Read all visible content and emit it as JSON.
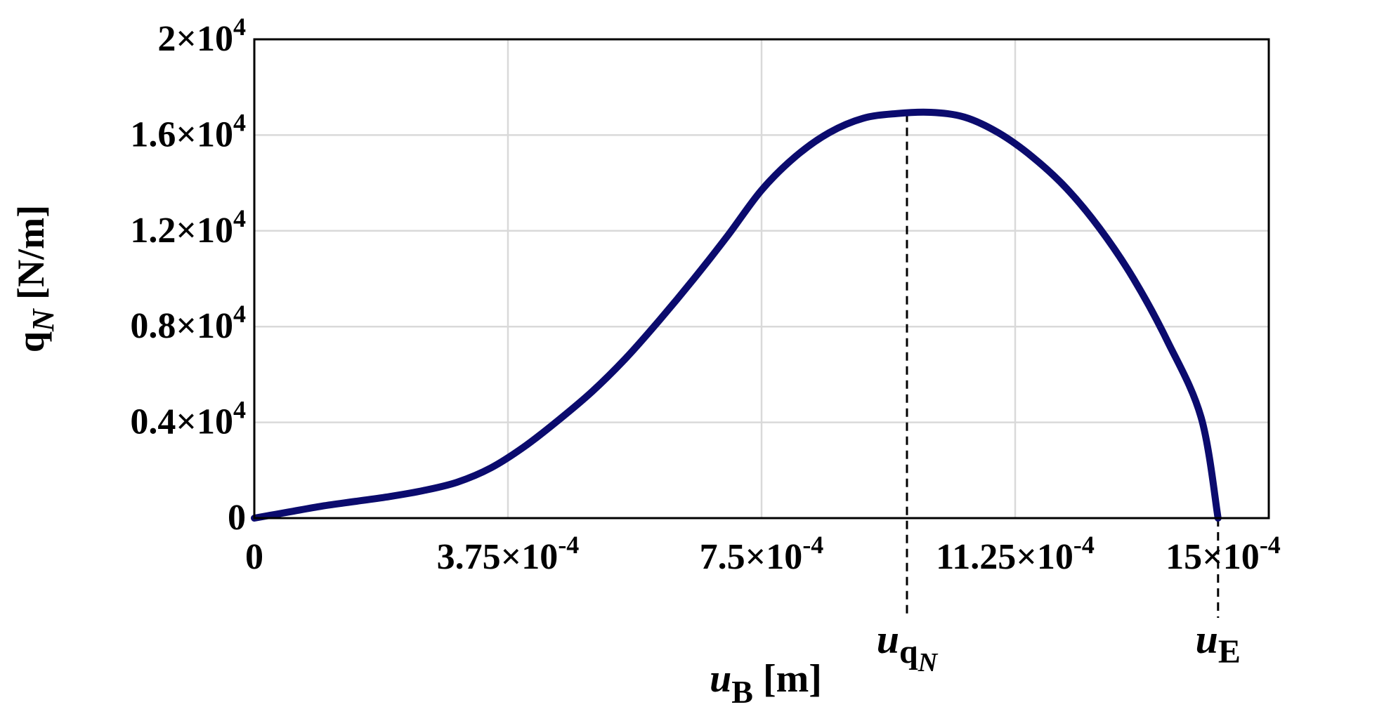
{
  "chart_data": {
    "type": "line",
    "title": "",
    "xlabel": {
      "base": "u",
      "sub": "B",
      "unit": " [m]"
    },
    "ylabel": {
      "base": "q",
      "sub": "N",
      "unit": " [N/m]"
    },
    "xlim": [
      0,
      0.0015
    ],
    "ylim": [
      0,
      20000
    ],
    "grid": true,
    "x_ticks": [
      {
        "value": 0,
        "mant": "0",
        "exp": ""
      },
      {
        "value": 0.000375,
        "mant": "3.75×10",
        "exp": "-4"
      },
      {
        "value": 0.00075,
        "mant": "7.5×10",
        "exp": "-4"
      },
      {
        "value": 0.001125,
        "mant": "11.25×10",
        "exp": "-4"
      },
      {
        "value": 0.0015,
        "mant": "15×10",
        "exp": "-4"
      }
    ],
    "y_ticks": [
      {
        "value": 0,
        "mant": "0",
        "exp": ""
      },
      {
        "value": 4000,
        "mant": "0.4×10",
        "exp": "4"
      },
      {
        "value": 8000,
        "mant": "0.8×10",
        "exp": "4"
      },
      {
        "value": 12000,
        "mant": "1.2×10",
        "exp": "4"
      },
      {
        "value": 16000,
        "mant": "1.6×10",
        "exp": "4"
      },
      {
        "value": 20000,
        "mant": "2×10",
        "exp": "4"
      }
    ],
    "series": [
      {
        "color": "#0b0b6e",
        "x": [
          0,
          5e-05,
          0.0001,
          0.00015,
          0.0002,
          0.00025,
          0.0003,
          0.00035,
          0.0004,
          0.00045,
          0.0005,
          0.00055,
          0.0006,
          0.00065,
          0.0007,
          0.00075,
          0.0008,
          0.00085,
          0.0009,
          0.00095,
          0.001,
          0.00105,
          0.0011,
          0.00115,
          0.0012,
          0.00125,
          0.0013,
          0.00135,
          0.0014,
          0.001425
        ],
        "y": [
          0,
          250,
          500,
          700,
          900,
          1150,
          1500,
          2100,
          3000,
          4100,
          5300,
          6700,
          8300,
          10000,
          11800,
          13700,
          15100,
          16100,
          16700,
          16900,
          16950,
          16750,
          16100,
          15100,
          13800,
          12100,
          10000,
          7400,
          4200,
          0
        ]
      }
    ],
    "annotations": [
      {
        "x": 0.000965,
        "base": "u",
        "sub": "q",
        "subsub": "N"
      },
      {
        "x": 0.001425,
        "base": "u",
        "sub": "E",
        "subsub": ""
      }
    ]
  }
}
